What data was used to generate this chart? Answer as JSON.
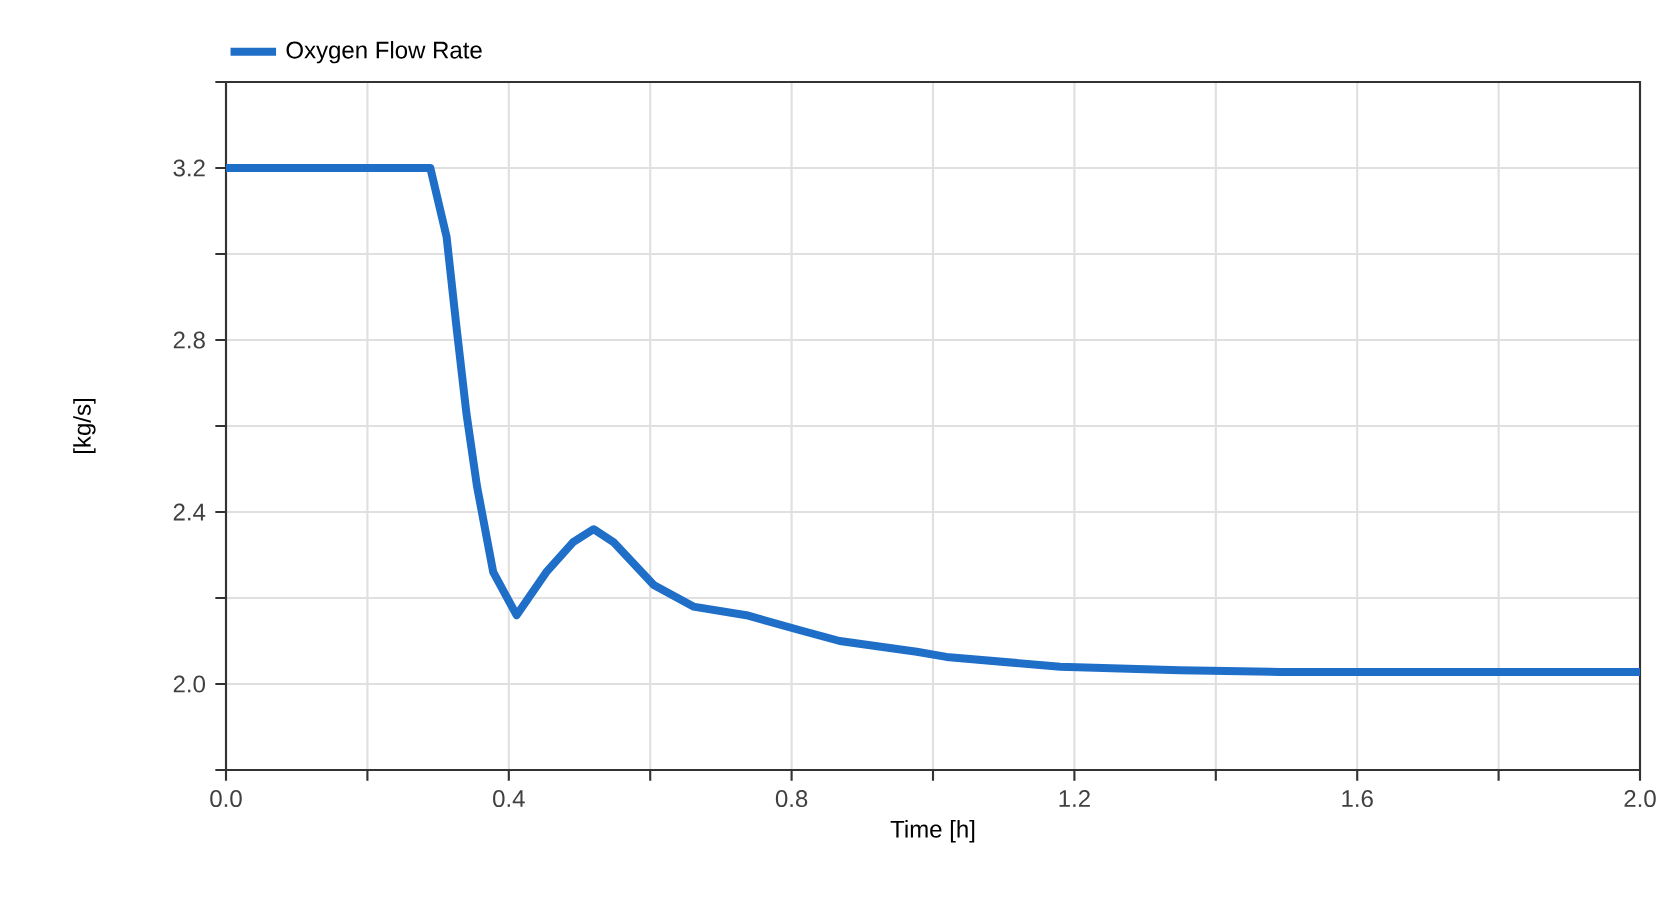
{
  "chart_data": {
    "type": "line",
    "xlabel": "Time [h]",
    "ylabel": "[kg/s]",
    "xlim": [
      0,
      2.0
    ],
    "ylim": [
      1.8,
      3.4
    ],
    "xticks": [
      {
        "value": 0,
        "label": "0.0"
      },
      {
        "value": 0.2,
        "label": null
      },
      0.4,
      {
        "value": 0.6,
        "label": null
      },
      0.8,
      {
        "value": 1.0,
        "label": null
      },
      1.2,
      {
        "value": 1.4,
        "label": null
      },
      1.6,
      {
        "value": 1.8,
        "label": null
      },
      {
        "value": 2.0,
        "label": "2.0"
      }
    ],
    "yticks": [
      {
        "value": 1.8,
        "label": null
      },
      {
        "value": 2.0,
        "label": "2.0"
      },
      {
        "value": 2.2,
        "label": null
      },
      2.4,
      {
        "value": 2.6,
        "label": null
      },
      2.8,
      {
        "value": 3.0,
        "label": null
      },
      3.2,
      {
        "value": 3.4,
        "label": null
      }
    ],
    "grid": true,
    "legend": "top left",
    "line_style": "solid",
    "series": [
      {
        "name": "Oxygen Flow Rate",
        "color": "#1f6fc9",
        "x": [
          0,
          0.1,
          0.2,
          0.289,
          0.312,
          0.326,
          0.34,
          0.355,
          0.378,
          0.411,
          0.453,
          0.491,
          0.52,
          0.548,
          0.605,
          0.661,
          0.736,
          0.812,
          0.868,
          0.977,
          1.019,
          1.18,
          1.349,
          1.491,
          1.7,
          2.0
        ],
        "values": [
          3.2,
          3.2,
          3.2,
          3.2,
          3.04,
          2.83,
          2.63,
          2.46,
          2.26,
          2.16,
          2.26,
          2.33,
          2.36,
          2.33,
          2.23,
          2.18,
          2.16,
          2.125,
          2.1,
          2.075,
          2.063,
          2.04,
          2.032,
          2.028,
          2.028,
          2.028
        ]
      }
    ]
  }
}
